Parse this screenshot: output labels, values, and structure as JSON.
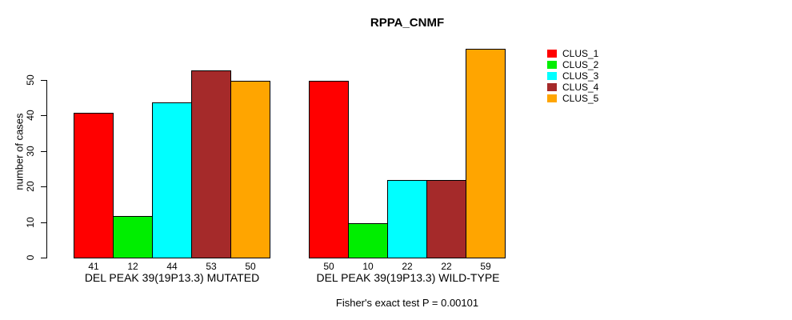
{
  "chart_data": {
    "type": "bar",
    "title": "RPPA_CNMF",
    "xlabel": "",
    "ylabel": "number of cases",
    "ylim": [
      0,
      59
    ],
    "yticks": [
      0,
      10,
      20,
      30,
      40,
      50
    ],
    "grid": false,
    "legend_position": "right-outside",
    "bar_value_labels": true,
    "categories": [
      "DEL PEAK 39(19P13.3) MUTATED",
      "DEL PEAK 39(19P13.3) WILD-TYPE"
    ],
    "series": [
      {
        "name": "CLUS_1",
        "color": "#ff0000",
        "values": [
          41,
          50
        ]
      },
      {
        "name": "CLUS_2",
        "color": "#00ee00",
        "values": [
          12,
          10
        ]
      },
      {
        "name": "CLUS_3",
        "color": "#00ffff",
        "values": [
          44,
          22
        ]
      },
      {
        "name": "CLUS_4",
        "color": "#a52a2a",
        "values": [
          53,
          22
        ]
      },
      {
        "name": "CLUS_5",
        "color": "#ffa500",
        "values": [
          50,
          59
        ]
      }
    ],
    "annotation": "Fisher's exact test P = 0.00101"
  }
}
